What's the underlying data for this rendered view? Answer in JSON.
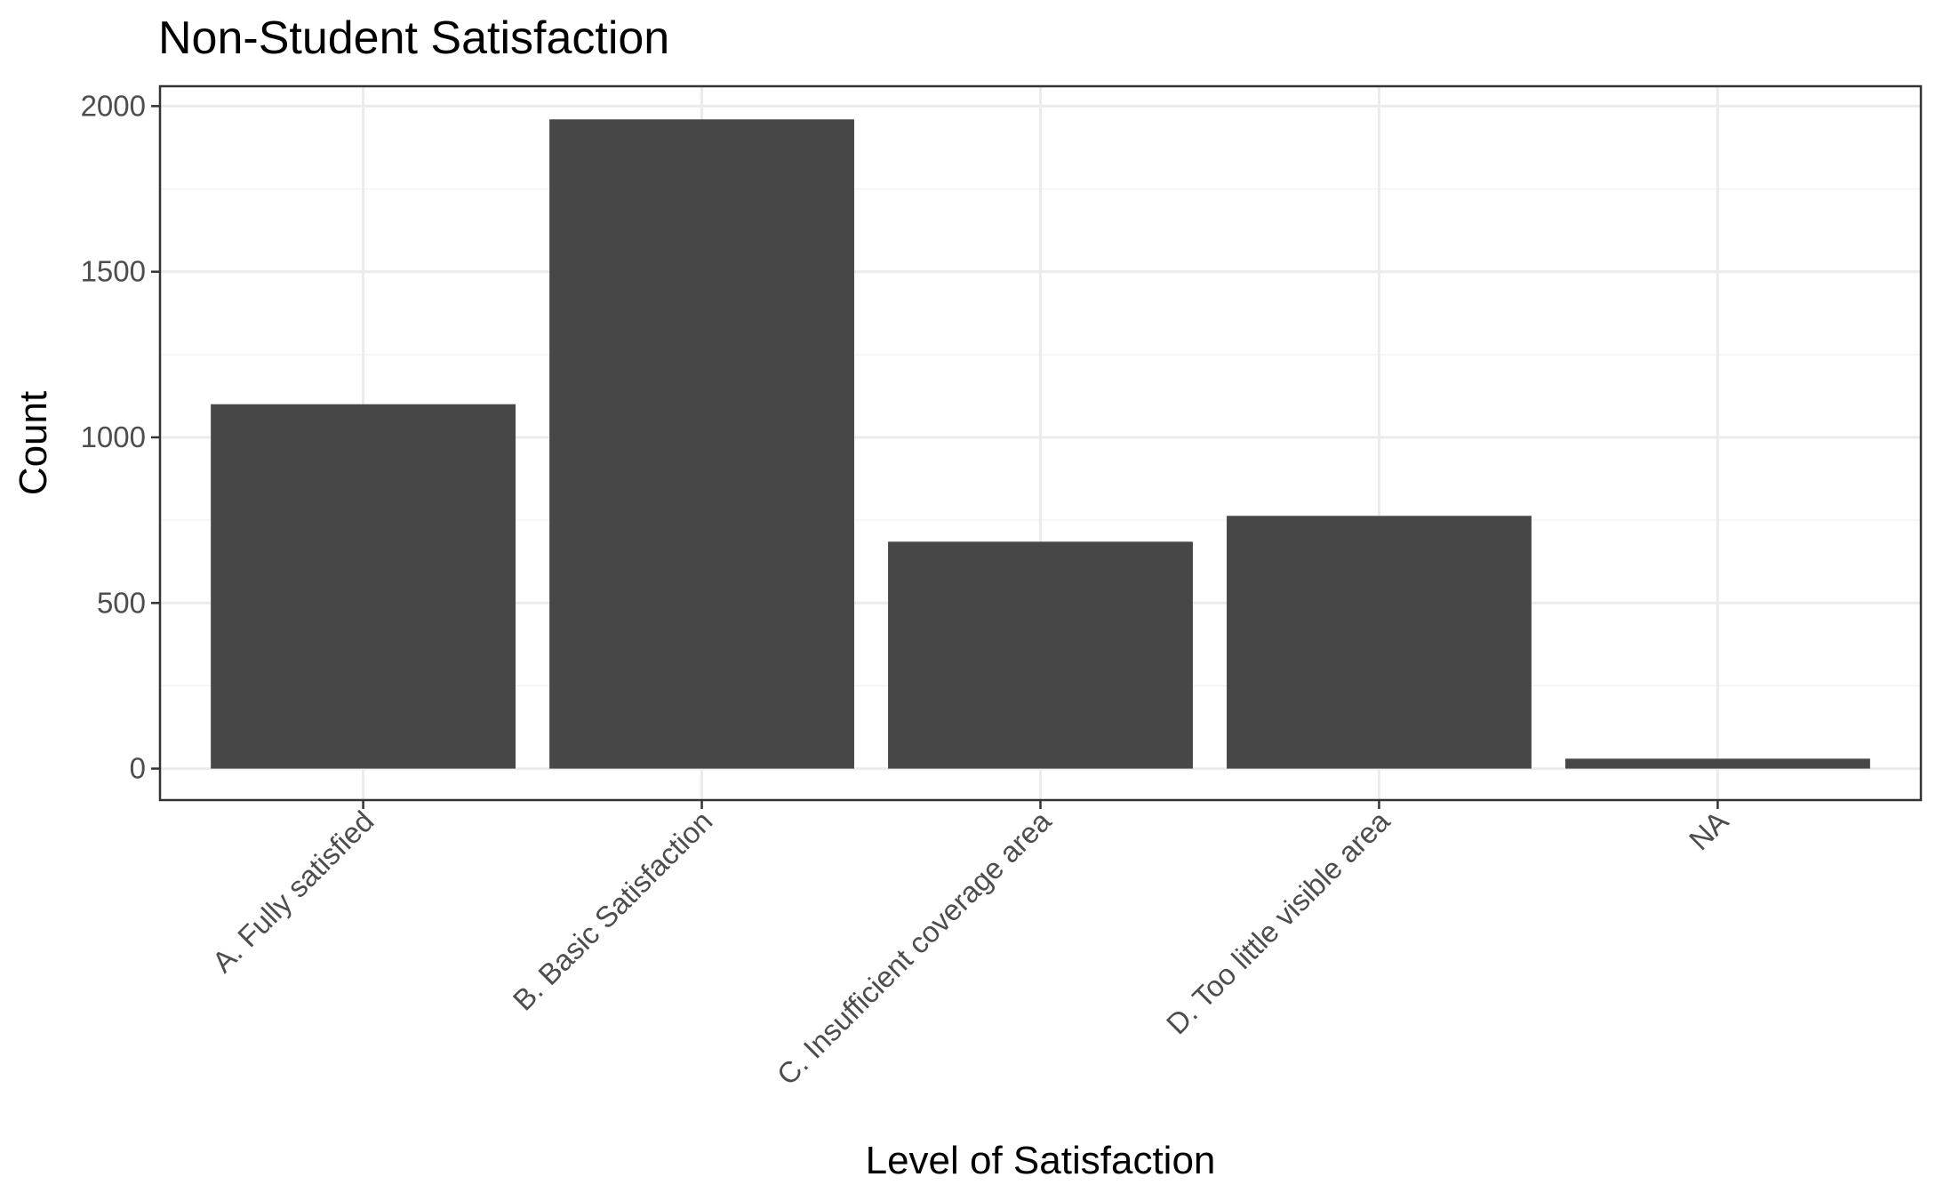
{
  "chart_data": {
    "type": "bar",
    "title": "Non-Student Satisfaction",
    "xlabel": "Level of Satisfaction",
    "ylabel": "Count",
    "categories": [
      "A. Fully satisfied",
      "B. Basic Satisfaction",
      "C. Insufficient coverage area",
      "D. Too little visible area",
      "NA"
    ],
    "values": [
      1100,
      1960,
      685,
      763,
      30
    ],
    "ylim": [
      -95,
      2060
    ],
    "yticks": [
      0,
      500,
      1000,
      1500,
      2000
    ],
    "ytick_labels": [
      "0",
      "500",
      "1000",
      "1500",
      "2000"
    ],
    "grid": true,
    "legend": "none",
    "bar_color": "#474747",
    "panel_background": "#ffffff",
    "grid_color": "#ebebeb"
  }
}
